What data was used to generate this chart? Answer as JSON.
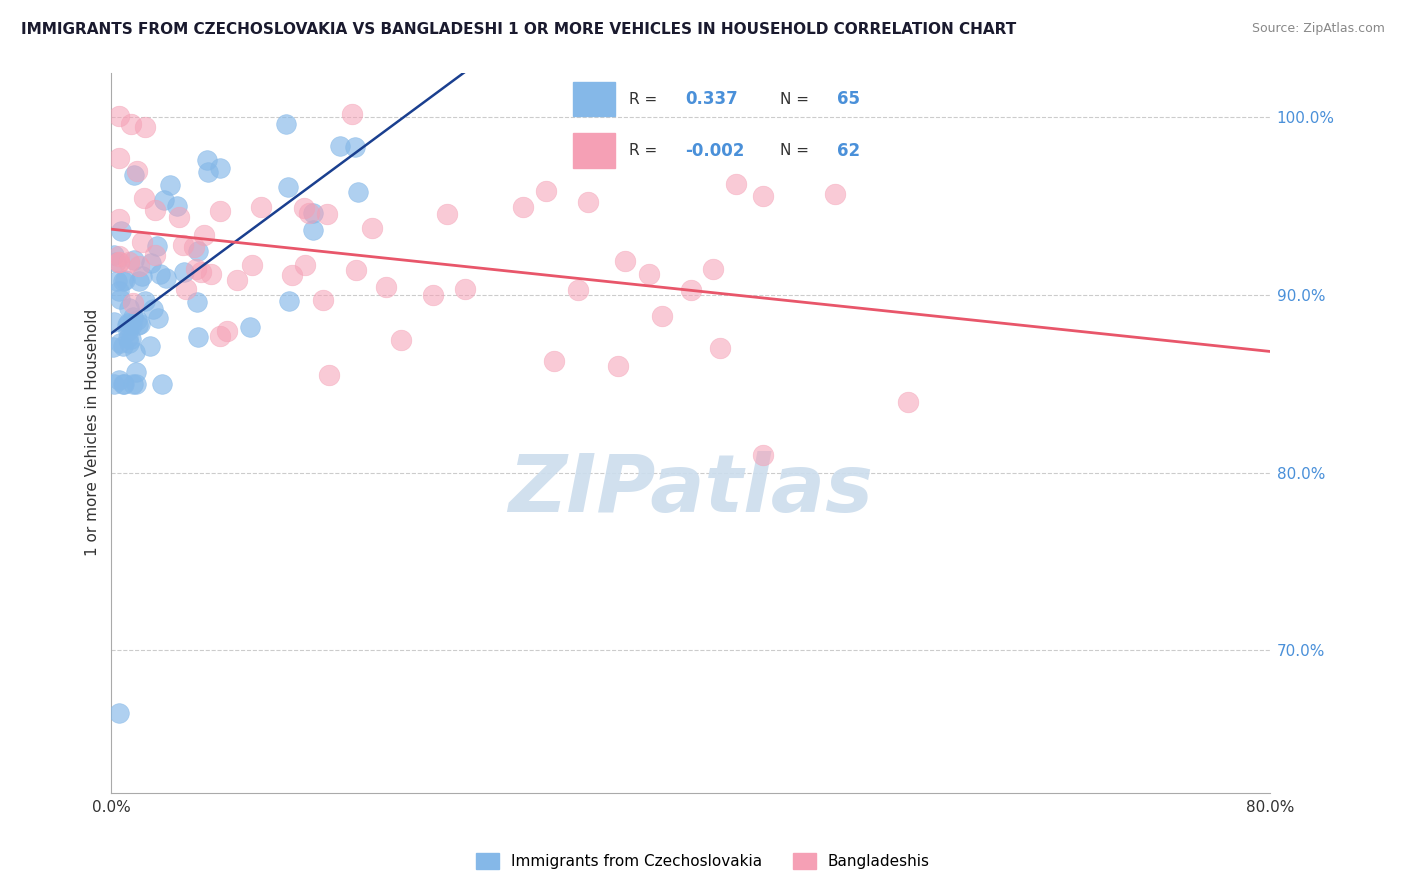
{
  "title": "IMMIGRANTS FROM CZECHOSLOVAKIA VS BANGLADESHI 1 OR MORE VEHICLES IN HOUSEHOLD CORRELATION CHART",
  "source": "Source: ZipAtlas.com",
  "ylabel": "1 or more Vehicles in Household",
  "yticks": [
    100.0,
    90.0,
    80.0,
    70.0
  ],
  "ytick_labels": [
    "100.0%",
    "90.0%",
    "80.0%",
    "70.0%"
  ],
  "xmin": 0.0,
  "xmax": 80.0,
  "ymin": 62.0,
  "ymax": 102.5,
  "blue_color": "#85b8e8",
  "pink_color": "#f5a0b5",
  "blue_line_color": "#1a3f8f",
  "pink_line_color": "#e8566a",
  "legend_label_blue": "Immigrants from Czechoslovakia",
  "legend_label_pink": "Bangladeshis",
  "watermark": "ZIPatlas",
  "watermark_color": "#ccdded",
  "grid_color": "#cccccc",
  "title_color": "#1a1a2e",
  "source_color": "#888888",
  "ylabel_color": "#333333",
  "xtick_color": "#333333",
  "ytick_color": "#4a90d9",
  "legend_R_color": "#333333",
  "legend_N_color": "#4a90d9",
  "legend_val_color": "#4a90d9"
}
